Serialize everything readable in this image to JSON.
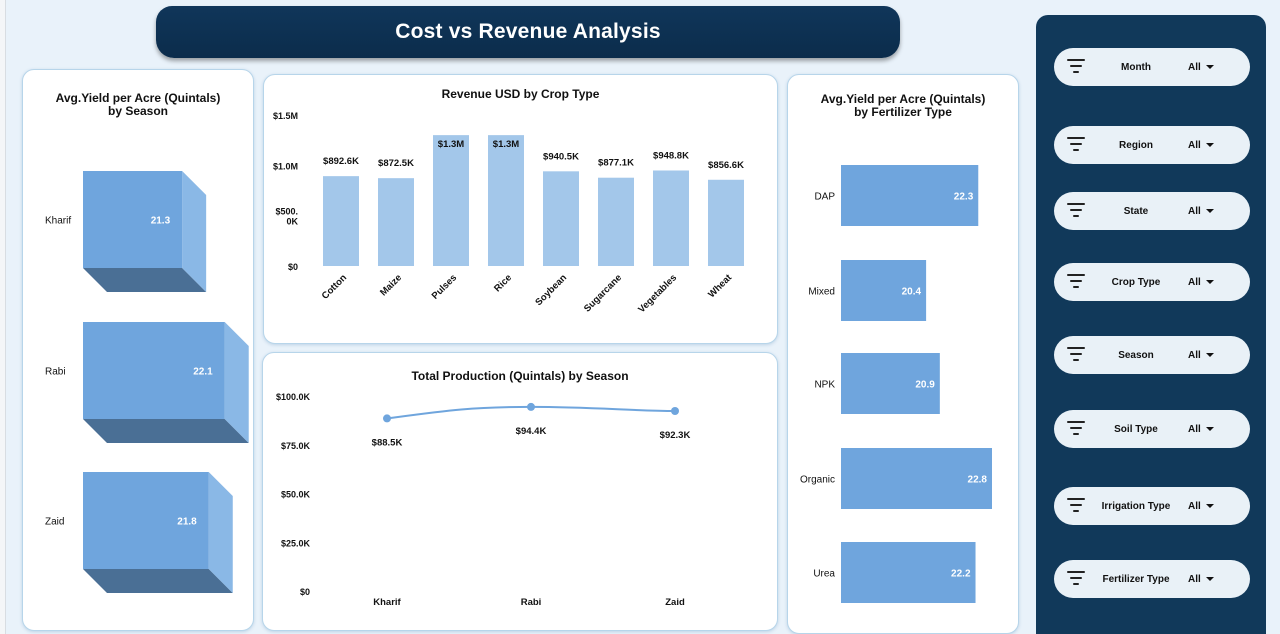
{
  "header": {
    "title": "Cost vs Revenue Analysis"
  },
  "filters": [
    {
      "label": "Month",
      "value": "All"
    },
    {
      "label": "Region",
      "value": "All"
    },
    {
      "label": "State",
      "value": "All"
    },
    {
      "label": "Crop Type",
      "value": "All"
    },
    {
      "label": "Season",
      "value": "All"
    },
    {
      "label": "Soil Type",
      "value": "All"
    },
    {
      "label": "Irrigation Type",
      "value": "All"
    },
    {
      "label": "Fertilizer Type",
      "value": "All"
    }
  ],
  "colors": {
    "bar": "#6fa5dd",
    "bar_light": "#a3c7ea",
    "cube_front": "#6fa5dd",
    "cube_side": "#8ab8e6",
    "cube_bottom": "#4a6f95",
    "line": "#6fa5dd",
    "sidebar": "#11395a",
    "banner": "#0d3052"
  },
  "chart_data": [
    {
      "type": "bar",
      "id": "season_yield",
      "title": "Avg.Yield per Acre (Quintals) by Season",
      "orientation": "horizontal",
      "style": "3d",
      "categories": [
        "Kharif",
        "Rabi",
        "Zaid"
      ],
      "values": [
        21.3,
        22.1,
        21.8
      ],
      "labels": [
        "21.3",
        "22.1",
        "21.8"
      ],
      "xlim": [
        20,
        22.5
      ]
    },
    {
      "type": "bar",
      "id": "revenue_crop",
      "title": "Revenue USD by Crop Type",
      "categories": [
        "Cotton",
        "Maize",
        "Pulses",
        "Rice",
        "Soybean",
        "Sugarcane",
        "Vegetables",
        "Wheat"
      ],
      "values": [
        892600,
        872500,
        1300000,
        1300000,
        940500,
        877100,
        948800,
        856600
      ],
      "labels": [
        "$892.6K",
        "$872.5K",
        "$1.3M",
        "$1.3M",
        "$940.5K",
        "$877.1K",
        "$948.8K",
        "$856.6K"
      ],
      "yticks": [
        "$0",
        "$500.\n0K",
        "$1.0M",
        "$1.5M"
      ],
      "ylim": [
        0,
        1500000
      ]
    },
    {
      "type": "line",
      "id": "production_season",
      "title": "Total Production (Quintals) by Season",
      "categories": [
        "Kharif",
        "Rabi",
        "Zaid"
      ],
      "values": [
        88500,
        94400,
        92300
      ],
      "labels": [
        "$88.5K",
        "$94.4K",
        "$92.3K"
      ],
      "yticks": [
        "$0",
        "$25.0K",
        "$50.0K",
        "$75.0K",
        "$100.0K"
      ],
      "ylim": [
        0,
        100000
      ]
    },
    {
      "type": "bar",
      "id": "fertilizer_yield",
      "title": "Avg.Yield per Acre (Quintals) by Fertilizer Type",
      "orientation": "horizontal",
      "categories": [
        "DAP",
        "Mixed",
        "NPK",
        "Organic",
        "Urea"
      ],
      "values": [
        22.3,
        20.4,
        20.9,
        22.8,
        22.2
      ],
      "labels": [
        "22.3",
        "20.4",
        "20.9",
        "22.8",
        "22.2"
      ],
      "xlim": [
        17.3,
        22.8
      ]
    }
  ]
}
